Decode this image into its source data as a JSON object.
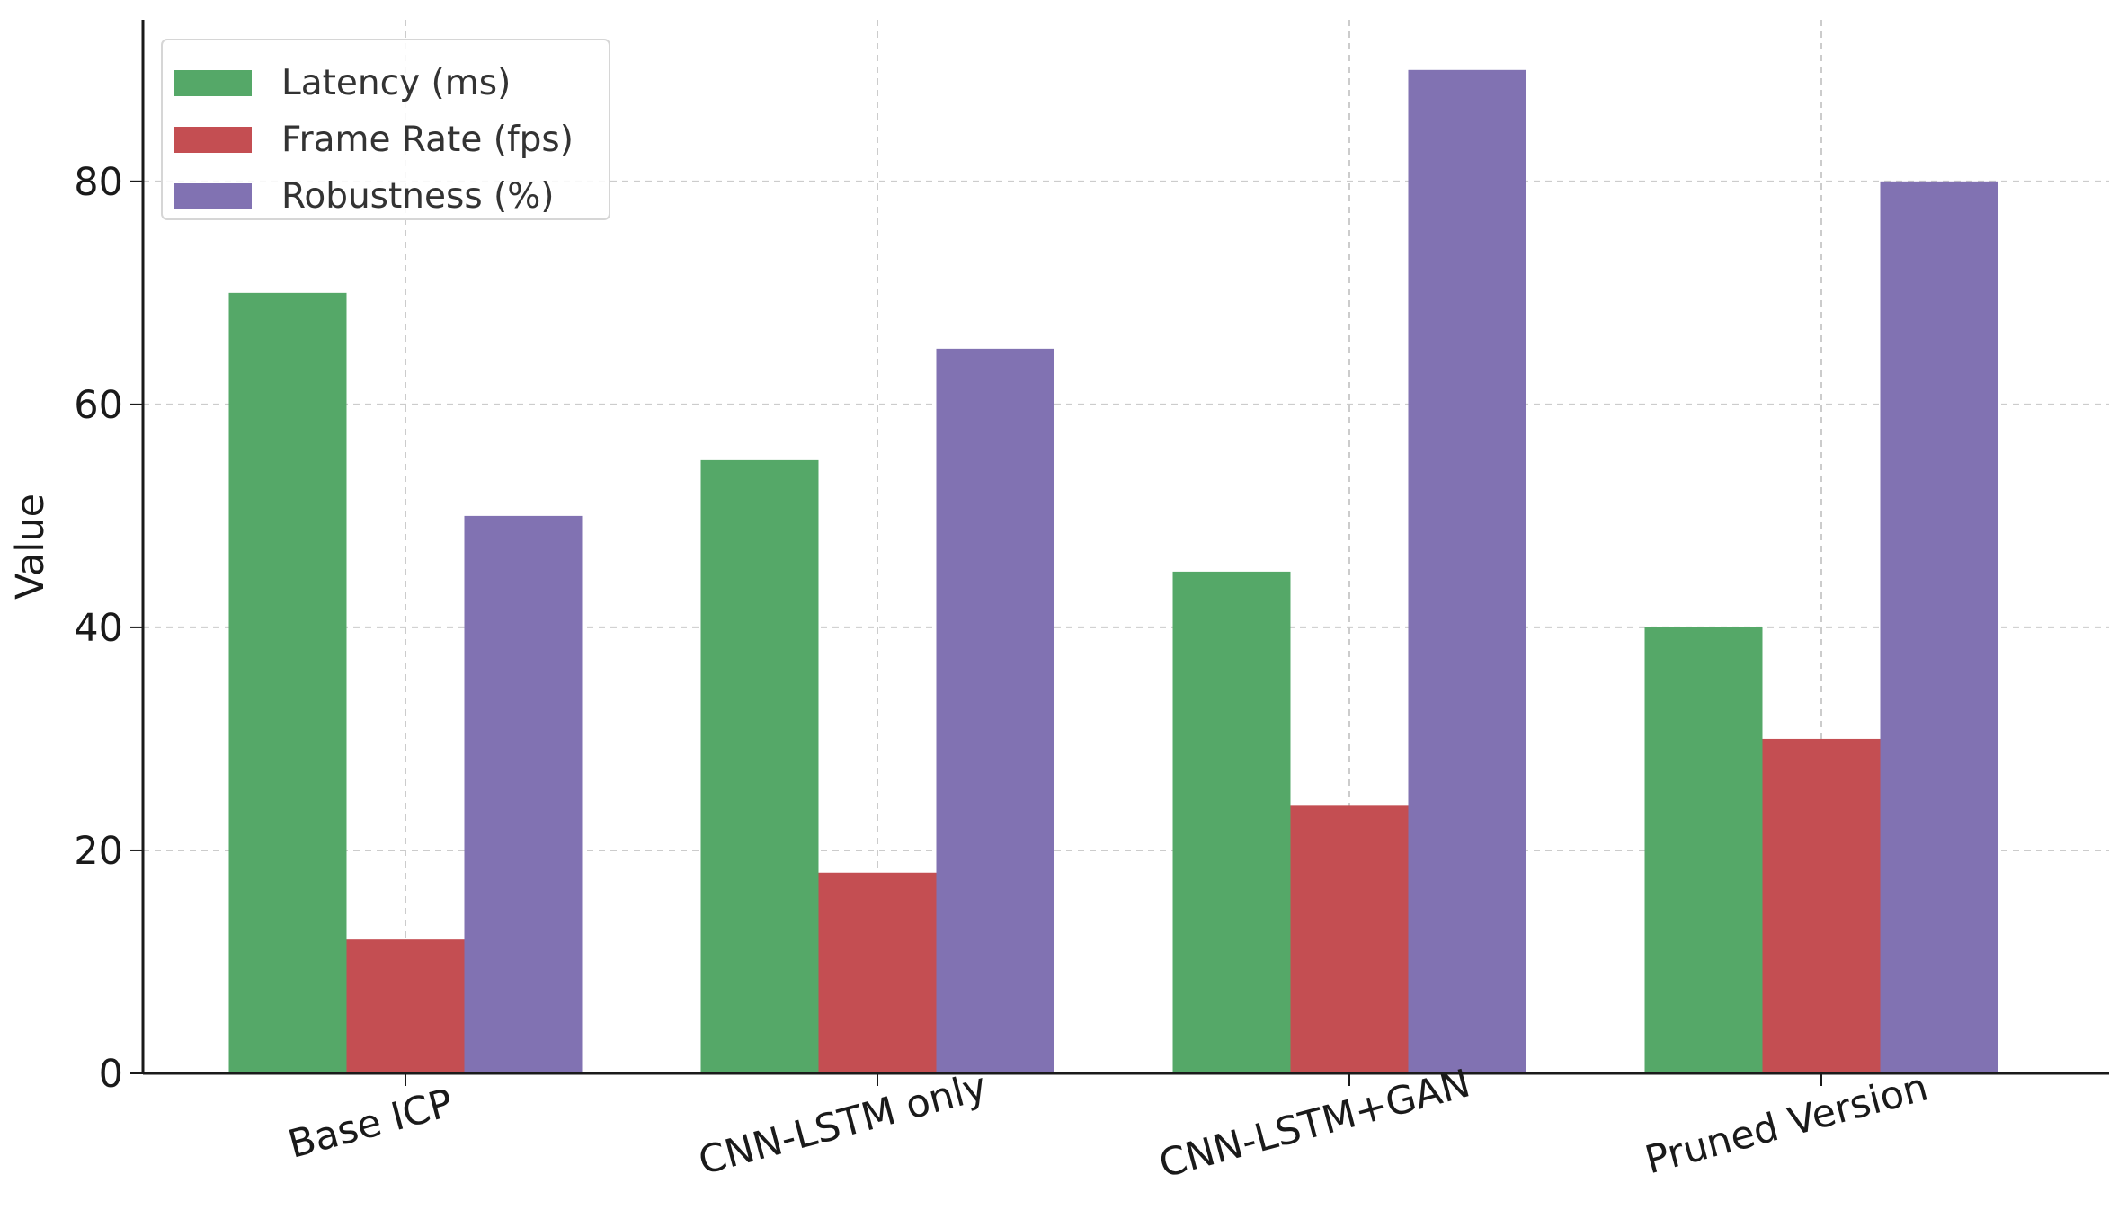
{
  "chart_data": {
    "type": "bar",
    "title": "",
    "xlabel": "",
    "ylabel": "Value",
    "categories": [
      "Base ICP",
      "CNN-LSTM only",
      "CNN-LSTM+GAN",
      "Pruned Version"
    ],
    "series": [
      {
        "name": "Latency (ms)",
        "color": "#55a868",
        "values": [
          70,
          55,
          45,
          40
        ]
      },
      {
        "name": "Frame Rate (fps)",
        "color": "#c44e52",
        "values": [
          12,
          18,
          24,
          30
        ]
      },
      {
        "name": "Robustness (%)",
        "color": "#8172b2",
        "values": [
          50,
          65,
          90,
          80
        ]
      }
    ],
    "ylim": [
      0,
      94.5
    ],
    "yticks": [
      "0",
      "20",
      "40",
      "60",
      "80"
    ],
    "grid": true,
    "legend_position": "top-left"
  }
}
